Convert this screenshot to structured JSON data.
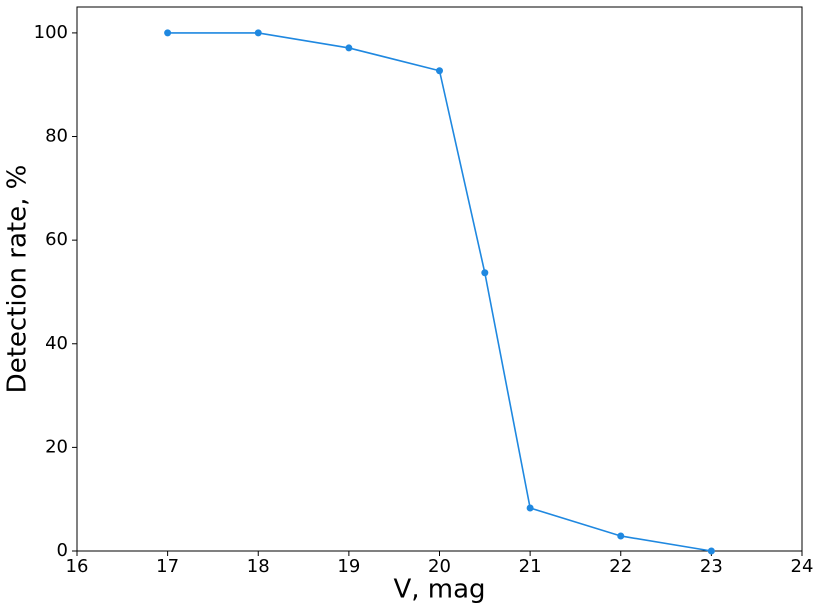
{
  "chart_data": {
    "type": "line",
    "x_label": "V, mag",
    "y_label": "Detection rate, %",
    "x": [
      17,
      18,
      19,
      20,
      20.5,
      21,
      22,
      23
    ],
    "series": [
      {
        "color": "#1f88e0",
        "values": [
          100,
          100,
          97.1,
          92.7,
          53.7,
          8.3,
          2.9,
          0
        ]
      }
    ],
    "xlim": [
      16,
      24
    ],
    "xticks": [
      16,
      17,
      18,
      19,
      20,
      21,
      22,
      23,
      24
    ],
    "ylim": [
      0,
      105
    ],
    "yticks": [
      0,
      20,
      40,
      60,
      80,
      100
    ],
    "grid": false,
    "markers": true
  }
}
